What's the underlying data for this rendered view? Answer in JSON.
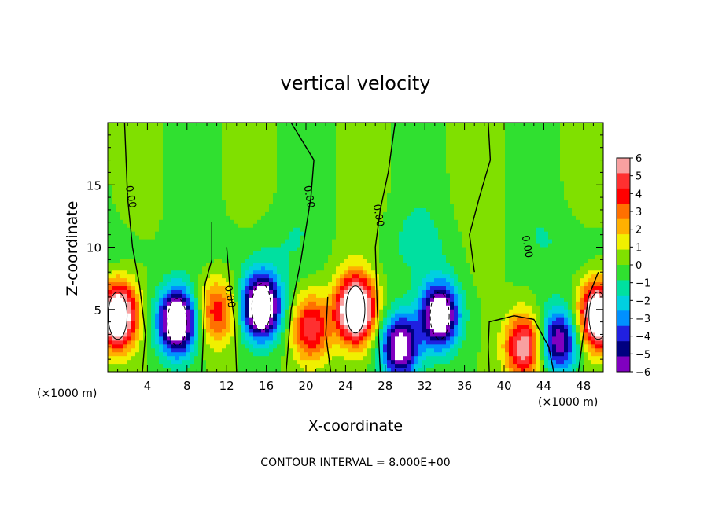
{
  "chart_data": {
    "type": "heatmap",
    "title": "vertical velocity",
    "xlabel": "X-coordinate",
    "ylabel": "Z-coordinate",
    "x_unit_left": "(×1000 m)",
    "x_unit_right": "(×1000 m)",
    "footer": "CONTOUR INTERVAL = 8.000E+00",
    "xlim": [
      0,
      50
    ],
    "ylim": [
      0,
      20
    ],
    "x_ticks": [
      4,
      8,
      12,
      16,
      20,
      24,
      28,
      32,
      36,
      40,
      44,
      48
    ],
    "y_ticks": [
      5,
      10,
      15
    ],
    "colorbar": {
      "range": [
        -6,
        6
      ],
      "ticks": [
        6,
        5,
        4,
        3,
        2,
        1,
        0,
        -1,
        -2,
        -3,
        -4,
        -5,
        -6
      ],
      "tick_labels": [
        "6",
        "5",
        "4",
        "3",
        "2",
        "1",
        "0",
        "−1",
        "−2",
        "−3",
        "−4",
        "−5",
        "−6"
      ],
      "colors": [
        "#f8a0a0",
        "#ff3030",
        "#ff0000",
        "#ff7000",
        "#ffb000",
        "#f0f000",
        "#80e000",
        "#30e030",
        "#00e0a0",
        "#00d0e0",
        "#0090ff",
        "#2020e0",
        "#000080",
        "#8000c0"
      ]
    },
    "contour_labels": [
      {
        "text": "0.00",
        "x": 2.0,
        "y": 14.0
      },
      {
        "text": "0.00",
        "x": 20.0,
        "y": 14.0
      },
      {
        "text": "0.00",
        "x": 27.0,
        "y": 12.5
      },
      {
        "text": "0.00",
        "x": 12.0,
        "y": 6.0
      },
      {
        "text": "0.00",
        "x": 42.0,
        "y": 10.0
      }
    ],
    "features": [
      {
        "sign": "positive",
        "x": 1.0,
        "z": 4.5,
        "amplitude": 9
      },
      {
        "sign": "negative",
        "x": 7.0,
        "z": 4.0,
        "amplitude": 9
      },
      {
        "sign": "positive",
        "x": 11.0,
        "z": 4.8,
        "amplitude": 4
      },
      {
        "sign": "negative",
        "x": 15.5,
        "z": 5.2,
        "amplitude": 9
      },
      {
        "sign": "positive",
        "x": 25.0,
        "z": 5.0,
        "amplitude": 10
      },
      {
        "sign": "positive",
        "x": 20.5,
        "z": 3.5,
        "amplitude": 5
      },
      {
        "sign": "negative",
        "x": 29.5,
        "z": 2.0,
        "amplitude": 7
      },
      {
        "sign": "negative",
        "x": 33.5,
        "z": 4.5,
        "amplitude": 8
      },
      {
        "sign": "positive",
        "x": 42.0,
        "z": 2.0,
        "amplitude": 6
      },
      {
        "sign": "negative",
        "x": 45.5,
        "z": 2.5,
        "amplitude": 6
      },
      {
        "sign": "positive",
        "x": 49.5,
        "z": 4.5,
        "amplitude": 9
      }
    ]
  }
}
